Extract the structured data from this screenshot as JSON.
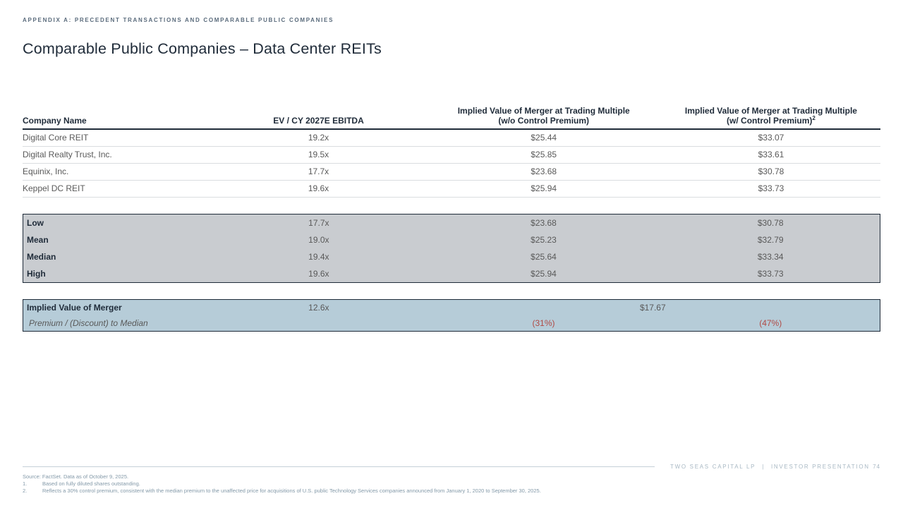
{
  "meta": {
    "eyebrow": "APPENDIX A: PRECEDENT TRANSACTIONS AND COMPARABLE PUBLIC COMPANIES",
    "title": "Comparable Public Companies – Data Center REITs"
  },
  "colors": {
    "accent_navy": "#1f2b39",
    "body_gray": "#595959",
    "stats_box_fill": "#c9ccd0",
    "implied_box_fill": "#b6ccd8",
    "negative_red": "#b04a45"
  },
  "table": {
    "columns": {
      "company": "Company Name",
      "ebitda": "EV / CY 2027E EBITDA",
      "wo_line1": "Implied Value of Merger at Trading Multiple",
      "wo_line2": "(w/o Control Premium)",
      "w_line1": "Implied Value of Merger at Trading Multiple",
      "w_line2": "(w/ Control Premium)",
      "w_sup": "2"
    },
    "companies": [
      {
        "name": "Digital Core REIT",
        "ebitda": "19.2x",
        "wo": "$25.44",
        "w": "$33.07"
      },
      {
        "name": "Digital Realty Trust, Inc.",
        "ebitda": "19.5x",
        "wo": "$25.85",
        "w": "$33.61"
      },
      {
        "name": "Equinix, Inc.",
        "ebitda": "17.7x",
        "wo": "$23.68",
        "w": "$30.78"
      },
      {
        "name": "Keppel DC REIT",
        "ebitda": "19.6x",
        "wo": "$25.94",
        "w": "$33.73"
      }
    ],
    "stats": [
      {
        "label": "Low",
        "ebitda": "17.7x",
        "wo": "$23.68",
        "w": "$30.78"
      },
      {
        "label": "Mean",
        "ebitda": "19.0x",
        "wo": "$25.23",
        "w": "$32.79"
      },
      {
        "label": "Median",
        "ebitda": "19.4x",
        "wo": "$25.64",
        "w": "$33.34"
      },
      {
        "label": "High",
        "ebitda": "19.6x",
        "wo": "$25.94",
        "w": "$33.73"
      }
    ],
    "implied": {
      "label": "Implied Value of Merger",
      "ebitda": "12.6x",
      "value": "$17.67"
    },
    "premium": {
      "label": "Premium / (Discount) to Median",
      "wo": "(31%)",
      "w": "(47%)"
    }
  },
  "footnotes": {
    "source": "Source: FactSet. Data as of October 9, 2025.",
    "items": [
      {
        "num": "1.",
        "text": "Based on fully diluted shares outstanding."
      },
      {
        "num": "2.",
        "text": "Reflects a 30% control premium, consistent with the median premium to the unaffected price for acquisitions of U.S. public Technology Services companies announced from January 1, 2020 to September 30, 2025."
      }
    ]
  },
  "footer": {
    "brand": "TWO SEAS CAPITAL LP",
    "divider": "|",
    "label": "INVESTOR PRESENTATION",
    "page": "74"
  }
}
